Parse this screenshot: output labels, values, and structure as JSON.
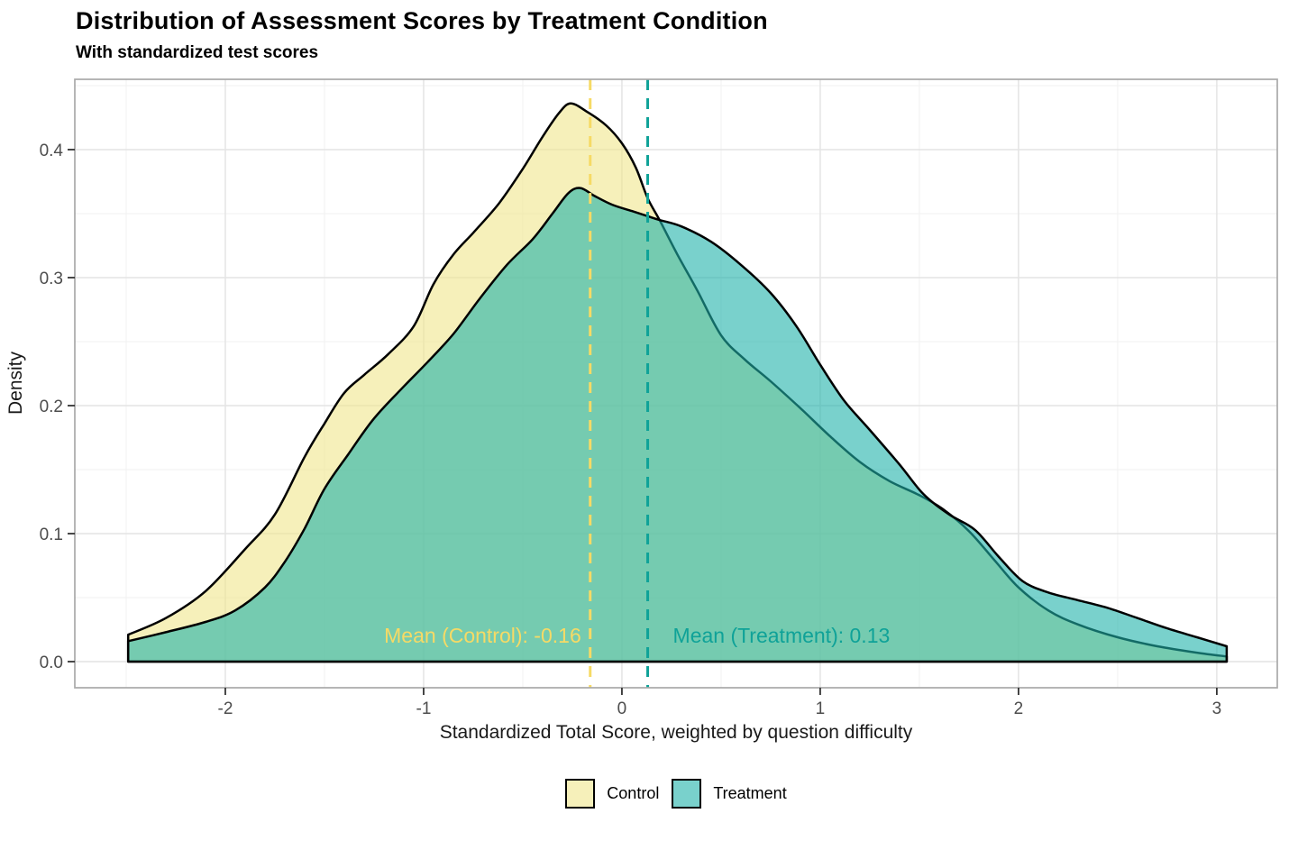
{
  "chart_data": {
    "type": "area",
    "subtype": "density",
    "title": "Distribution of Assessment Scores by Treatment Condition",
    "subtitle": "With standardized test scores",
    "xlabel": "Standardized Total Score, weighted by question difficulty",
    "ylabel": "Density",
    "xlim": [
      -2.759,
      3.305
    ],
    "ylim": [
      -0.0204,
      0.4549
    ],
    "x_ticks": [
      "-2",
      "-1",
      "0",
      "1",
      "2",
      "3"
    ],
    "x_tick_values": [
      -2,
      -1,
      0,
      1,
      2,
      3
    ],
    "x_minor_values": [
      -2.5,
      -1.5,
      -0.5,
      0.5,
      1.5,
      2.5
    ],
    "y_ticks": [
      "0.0",
      "0.1",
      "0.2",
      "0.3",
      "0.4"
    ],
    "y_tick_values": [
      0.0,
      0.1,
      0.2,
      0.3,
      0.4
    ],
    "y_minor_values": [
      0.05,
      0.15,
      0.25,
      0.35,
      0.45
    ],
    "grid": true,
    "legend_position": "bottom",
    "colors": {
      "panel_border": "#a9a9a9",
      "grid_major": "#e4e4e4",
      "grid_minor": "#f1f1f1",
      "curve_stroke": "#000000",
      "tick_mark": "#333333",
      "tick_text": "#4d4d4d"
    },
    "series": [
      {
        "name": "Control",
        "fill": "rgba(240,230,140,0.6)",
        "accent": "#f6da65",
        "mean": -0.16,
        "mean_label": "Mean (Control): -0.16",
        "points": [
          [
            -2.49,
            0.021
          ],
          [
            -2.3,
            0.034
          ],
          [
            -2.1,
            0.055
          ],
          [
            -1.9,
            0.088
          ],
          [
            -1.75,
            0.115
          ],
          [
            -1.6,
            0.16
          ],
          [
            -1.5,
            0.186
          ],
          [
            -1.4,
            0.21
          ],
          [
            -1.3,
            0.224
          ],
          [
            -1.18,
            0.24
          ],
          [
            -1.05,
            0.262
          ],
          [
            -0.95,
            0.295
          ],
          [
            -0.85,
            0.318
          ],
          [
            -0.75,
            0.335
          ],
          [
            -0.62,
            0.358
          ],
          [
            -0.5,
            0.385
          ],
          [
            -0.4,
            0.41
          ],
          [
            -0.32,
            0.428
          ],
          [
            -0.26,
            0.436
          ],
          [
            -0.18,
            0.43
          ],
          [
            -0.08,
            0.419
          ],
          [
            0.0,
            0.405
          ],
          [
            0.07,
            0.386
          ],
          [
            0.13,
            0.362
          ],
          [
            0.19,
            0.345
          ],
          [
            0.28,
            0.318
          ],
          [
            0.38,
            0.29
          ],
          [
            0.5,
            0.255
          ],
          [
            0.62,
            0.236
          ],
          [
            0.75,
            0.219
          ],
          [
            0.9,
            0.198
          ],
          [
            1.05,
            0.176
          ],
          [
            1.2,
            0.156
          ],
          [
            1.35,
            0.141
          ],
          [
            1.5,
            0.13
          ],
          [
            1.62,
            0.119
          ],
          [
            1.75,
            0.102
          ],
          [
            1.88,
            0.079
          ],
          [
            2.0,
            0.058
          ],
          [
            2.15,
            0.04
          ],
          [
            2.3,
            0.029
          ],
          [
            2.5,
            0.019
          ],
          [
            2.7,
            0.012
          ],
          [
            2.9,
            0.007
          ],
          [
            3.05,
            0.004
          ]
        ]
      },
      {
        "name": "Treatment",
        "fill": "rgba(32,178,170,0.6)",
        "accent": "#0fa298",
        "mean": 0.13,
        "mean_label": "Mean (Treatment): 0.13",
        "points": [
          [
            -2.49,
            0.016
          ],
          [
            -2.3,
            0.023
          ],
          [
            -2.1,
            0.031
          ],
          [
            -1.95,
            0.04
          ],
          [
            -1.8,
            0.058
          ],
          [
            -1.7,
            0.078
          ],
          [
            -1.6,
            0.104
          ],
          [
            -1.5,
            0.135
          ],
          [
            -1.38,
            0.162
          ],
          [
            -1.25,
            0.19
          ],
          [
            -1.1,
            0.215
          ],
          [
            -0.98,
            0.234
          ],
          [
            -0.85,
            0.256
          ],
          [
            -0.72,
            0.283
          ],
          [
            -0.58,
            0.31
          ],
          [
            -0.45,
            0.33
          ],
          [
            -0.35,
            0.35
          ],
          [
            -0.27,
            0.366
          ],
          [
            -0.21,
            0.37
          ],
          [
            -0.14,
            0.364
          ],
          [
            -0.05,
            0.357
          ],
          [
            0.05,
            0.352
          ],
          [
            0.13,
            0.348
          ],
          [
            0.19,
            0.345
          ],
          [
            0.3,
            0.34
          ],
          [
            0.45,
            0.328
          ],
          [
            0.6,
            0.31
          ],
          [
            0.75,
            0.288
          ],
          [
            0.88,
            0.262
          ],
          [
            1.0,
            0.232
          ],
          [
            1.12,
            0.204
          ],
          [
            1.25,
            0.181
          ],
          [
            1.4,
            0.154
          ],
          [
            1.52,
            0.131
          ],
          [
            1.65,
            0.115
          ],
          [
            1.78,
            0.103
          ],
          [
            1.9,
            0.082
          ],
          [
            2.02,
            0.063
          ],
          [
            2.15,
            0.054
          ],
          [
            2.3,
            0.048
          ],
          [
            2.45,
            0.042
          ],
          [
            2.6,
            0.034
          ],
          [
            2.75,
            0.026
          ],
          [
            2.9,
            0.019
          ],
          [
            3.05,
            0.012
          ]
        ]
      }
    ]
  }
}
